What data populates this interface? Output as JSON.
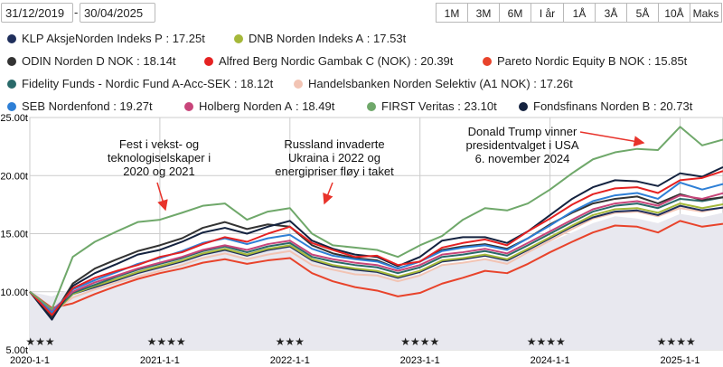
{
  "date_range": {
    "from": "31/12/2019",
    "separator": "-",
    "to": "30/04/2025"
  },
  "range_buttons": [
    "1M",
    "3M",
    "6M",
    "I år",
    "1Å",
    "3Å",
    "5Å",
    "10Å",
    "Maks"
  ],
  "legend": [
    {
      "name": "KLP AksjeNorden Indeks P",
      "value": "17.25t",
      "color": "#1f2f5c"
    },
    {
      "name": "DNB Norden Indeks A",
      "value": "17.53t",
      "color": "#a5b83a"
    },
    {
      "name": "ODIN Norden D NOK",
      "value": "18.14t",
      "color": "#333333"
    },
    {
      "name": "Alfred Berg Nordic Gambak C (NOK)",
      "value": "20.39t",
      "color": "#e52222"
    },
    {
      "name": "Pareto Nordic Equity B NOK",
      "value": "15.85t",
      "color": "#e8432b"
    },
    {
      "name": "Fidelity Funds - Nordic Fund A-Acc-SEK",
      "value": "18.12t",
      "color": "#2a6a6a"
    },
    {
      "name": "Handelsbanken Norden Selektiv (A1 NOK)",
      "value": "17.26t",
      "color": "#f2c4b4"
    },
    {
      "name": "SEB Nordenfond",
      "value": "19.27t",
      "color": "#2e7fd6"
    },
    {
      "name": "Holberg Norden A",
      "value": "18.49t",
      "color": "#c8457a"
    },
    {
      "name": "FIRST Veritas",
      "value": "23.10t",
      "color": "#6fa86a"
    },
    {
      "name": "Fondsfinans Norden B",
      "value": "20.73t",
      "color": "#14223f"
    }
  ],
  "annotations": [
    {
      "lines": [
        "Fest i vekst- og",
        "teknologiselskaper i",
        "2020 og 2021"
      ]
    },
    {
      "lines": [
        "Russland invaderte",
        "Ukraina i 2022 og",
        "energipriser fløy i taket"
      ]
    },
    {
      "lines": [
        "Donald Trump vinner",
        "presidentvalget i USA",
        "6. november 2024"
      ]
    }
  ],
  "chart_data": {
    "type": "line",
    "ylim": [
      5,
      25
    ],
    "yticks": [
      "5.00t",
      "10.00t",
      "15.00t",
      "20.00t",
      "25.00t"
    ],
    "ytick_values": [
      5,
      10,
      15,
      20,
      25
    ],
    "x_range": [
      2020.0,
      2025.33
    ],
    "xticks": [
      "2020-1-1",
      "2021-1-1",
      "2022-1-1",
      "2023-1-1",
      "2024-1-1",
      "2025-1-1"
    ],
    "xtick_values": [
      2020,
      2021,
      2022,
      2023,
      2024,
      2025
    ],
    "ratings": [
      {
        "stars": "★★★",
        "x": 2020.08
      },
      {
        "stars": "★★★★",
        "x": 2021.05
      },
      {
        "stars": "★★★",
        "x": 2022.0
      },
      {
        "stars": "★★★★",
        "x": 2023.0
      },
      {
        "stars": "★★★★",
        "x": 2023.97
      },
      {
        "stars": "★★★★",
        "x": 2024.97
      }
    ],
    "x": [
      2020.0,
      2020.17,
      2020.33,
      2020.5,
      2020.67,
      2020.83,
      2021.0,
      2021.17,
      2021.33,
      2021.5,
      2021.67,
      2021.83,
      2022.0,
      2022.17,
      2022.33,
      2022.5,
      2022.67,
      2022.83,
      2023.0,
      2023.17,
      2023.33,
      2023.5,
      2023.67,
      2023.83,
      2024.0,
      2024.17,
      2024.33,
      2024.5,
      2024.67,
      2024.83,
      2025.0,
      2025.17,
      2025.33
    ],
    "area": [
      10.0,
      9.6,
      10.3,
      11.0,
      11.4,
      12.0,
      12.6,
      13.0,
      13.7,
      14.1,
      13.4,
      13.8,
      13.9,
      12.6,
      12.2,
      12.0,
      11.8,
      11.4,
      11.5,
      12.3,
      12.5,
      12.9,
      12.7,
      13.4,
      14.3,
      15.1,
      15.9,
      16.5,
      16.3,
      15.9,
      16.7,
      16.4,
      16.8
    ],
    "series": [
      {
        "name": "FIRST Veritas",
        "color": "#6fa86a",
        "values": [
          10.0,
          8.5,
          13.0,
          14.3,
          15.2,
          16.0,
          16.2,
          16.8,
          17.4,
          17.6,
          16.2,
          16.9,
          17.2,
          15.0,
          14.0,
          13.8,
          13.6,
          13.0,
          14.0,
          14.8,
          16.2,
          17.2,
          17.0,
          17.6,
          18.8,
          20.2,
          21.4,
          22.0,
          22.3,
          22.2,
          24.2,
          22.6,
          23.1
        ]
      },
      {
        "name": "Alfred Berg Nordic Gambak C (NOK)",
        "color": "#e52222",
        "values": [
          10.0,
          8.0,
          10.3,
          11.2,
          11.8,
          12.3,
          13.0,
          13.4,
          14.1,
          14.7,
          14.3,
          15.0,
          15.6,
          14.2,
          13.6,
          13.0,
          13.1,
          12.3,
          12.6,
          13.8,
          14.2,
          14.5,
          14.0,
          15.2,
          16.3,
          17.5,
          18.4,
          18.9,
          19.0,
          18.5,
          19.6,
          19.8,
          20.39
        ]
      },
      {
        "name": "Fondsfinans Norden B",
        "color": "#14223f",
        "values": [
          10.0,
          7.6,
          10.5,
          11.6,
          12.4,
          13.2,
          13.6,
          14.3,
          15.1,
          15.5,
          15.0,
          15.6,
          16.1,
          14.4,
          13.7,
          13.2,
          13.0,
          12.2,
          13.0,
          14.4,
          14.7,
          14.7,
          14.2,
          15.2,
          16.6,
          18.0,
          19.0,
          19.6,
          19.5,
          19.1,
          20.2,
          19.9,
          20.73
        ]
      },
      {
        "name": "SEB Nordenfond",
        "color": "#2e7fd6",
        "values": [
          10.0,
          8.2,
          10.2,
          11.0,
          11.7,
          12.4,
          12.9,
          13.5,
          14.2,
          14.6,
          14.1,
          14.6,
          14.9,
          13.7,
          13.1,
          12.8,
          12.6,
          12.0,
          12.6,
          13.5,
          13.8,
          14.0,
          13.6,
          14.6,
          15.7,
          16.9,
          17.8,
          18.3,
          18.5,
          18.0,
          19.4,
          18.8,
          19.27
        ]
      },
      {
        "name": "Holberg Norden A",
        "color": "#c8457a",
        "values": [
          10.0,
          8.4,
          10.0,
          10.8,
          11.4,
          12.0,
          12.5,
          13.0,
          13.6,
          14.0,
          13.6,
          14.1,
          14.4,
          13.2,
          12.8,
          12.5,
          12.3,
          11.8,
          12.3,
          13.2,
          13.4,
          13.7,
          13.3,
          14.2,
          15.2,
          16.2,
          17.1,
          17.6,
          17.8,
          17.4,
          18.3,
          18.0,
          18.49
        ]
      },
      {
        "name": "ODIN Norden D NOK",
        "color": "#333333",
        "values": [
          10.0,
          7.8,
          10.7,
          12.0,
          12.8,
          13.5,
          14.0,
          14.6,
          15.5,
          16.0,
          15.4,
          15.8,
          15.6,
          14.0,
          13.3,
          12.9,
          12.7,
          12.0,
          12.6,
          13.6,
          13.9,
          14.1,
          13.7,
          14.6,
          15.8,
          16.8,
          17.6,
          18.0,
          18.2,
          17.6,
          18.4,
          17.9,
          18.14
        ]
      },
      {
        "name": "Fidelity Funds - Nordic Fund A-Acc-SEK",
        "color": "#2a6a6a",
        "values": [
          10.0,
          8.1,
          9.9,
          10.6,
          11.3,
          11.9,
          12.4,
          12.9,
          13.5,
          13.9,
          13.4,
          13.9,
          14.2,
          13.0,
          12.6,
          12.3,
          12.1,
          11.6,
          12.1,
          13.0,
          13.2,
          13.5,
          13.1,
          14.0,
          15.0,
          16.0,
          16.9,
          17.4,
          17.6,
          17.2,
          18.0,
          17.8,
          18.12
        ]
      },
      {
        "name": "DNB Norden Indeks A",
        "color": "#a5b83a",
        "values": [
          10.0,
          8.0,
          9.8,
          10.5,
          11.1,
          11.7,
          12.2,
          12.7,
          13.3,
          13.7,
          13.2,
          13.7,
          14.0,
          12.8,
          12.3,
          12.0,
          11.8,
          11.3,
          11.8,
          12.7,
          12.9,
          13.2,
          12.8,
          13.7,
          14.7,
          15.7,
          16.6,
          17.1,
          17.2,
          16.8,
          17.6,
          17.2,
          17.53
        ]
      },
      {
        "name": "KLP AksjeNorden Indeks P",
        "color": "#1f2f5c",
        "values": [
          10.0,
          8.0,
          9.8,
          10.4,
          11.0,
          11.6,
          12.1,
          12.6,
          13.2,
          13.6,
          13.1,
          13.6,
          13.9,
          12.7,
          12.2,
          11.9,
          11.7,
          11.2,
          11.7,
          12.6,
          12.8,
          13.1,
          12.7,
          13.6,
          14.6,
          15.6,
          16.4,
          16.9,
          17.0,
          16.6,
          17.4,
          17.0,
          17.25
        ]
      },
      {
        "name": "Handelsbanken Norden Selektiv (A1 NOK)",
        "color": "#f2c4b4",
        "values": [
          10.0,
          8.2,
          9.5,
          10.2,
          10.8,
          11.3,
          11.8,
          12.3,
          12.9,
          13.3,
          12.8,
          13.2,
          13.5,
          12.3,
          11.9,
          11.5,
          11.4,
          10.9,
          11.4,
          12.3,
          12.5,
          12.8,
          12.4,
          13.4,
          14.4,
          15.4,
          16.3,
          16.8,
          16.9,
          16.5,
          17.2,
          16.9,
          17.26
        ]
      },
      {
        "name": "Pareto Nordic Equity B NOK",
        "color": "#e8432b",
        "values": [
          10.0,
          8.6,
          9.0,
          9.8,
          10.5,
          11.1,
          11.6,
          12.0,
          12.5,
          12.8,
          12.4,
          12.7,
          12.9,
          11.6,
          10.9,
          10.4,
          10.1,
          9.6,
          9.9,
          10.7,
          11.2,
          11.8,
          11.6,
          12.4,
          13.4,
          14.3,
          15.1,
          15.7,
          15.6,
          15.1,
          16.1,
          15.6,
          15.85
        ]
      }
    ]
  }
}
